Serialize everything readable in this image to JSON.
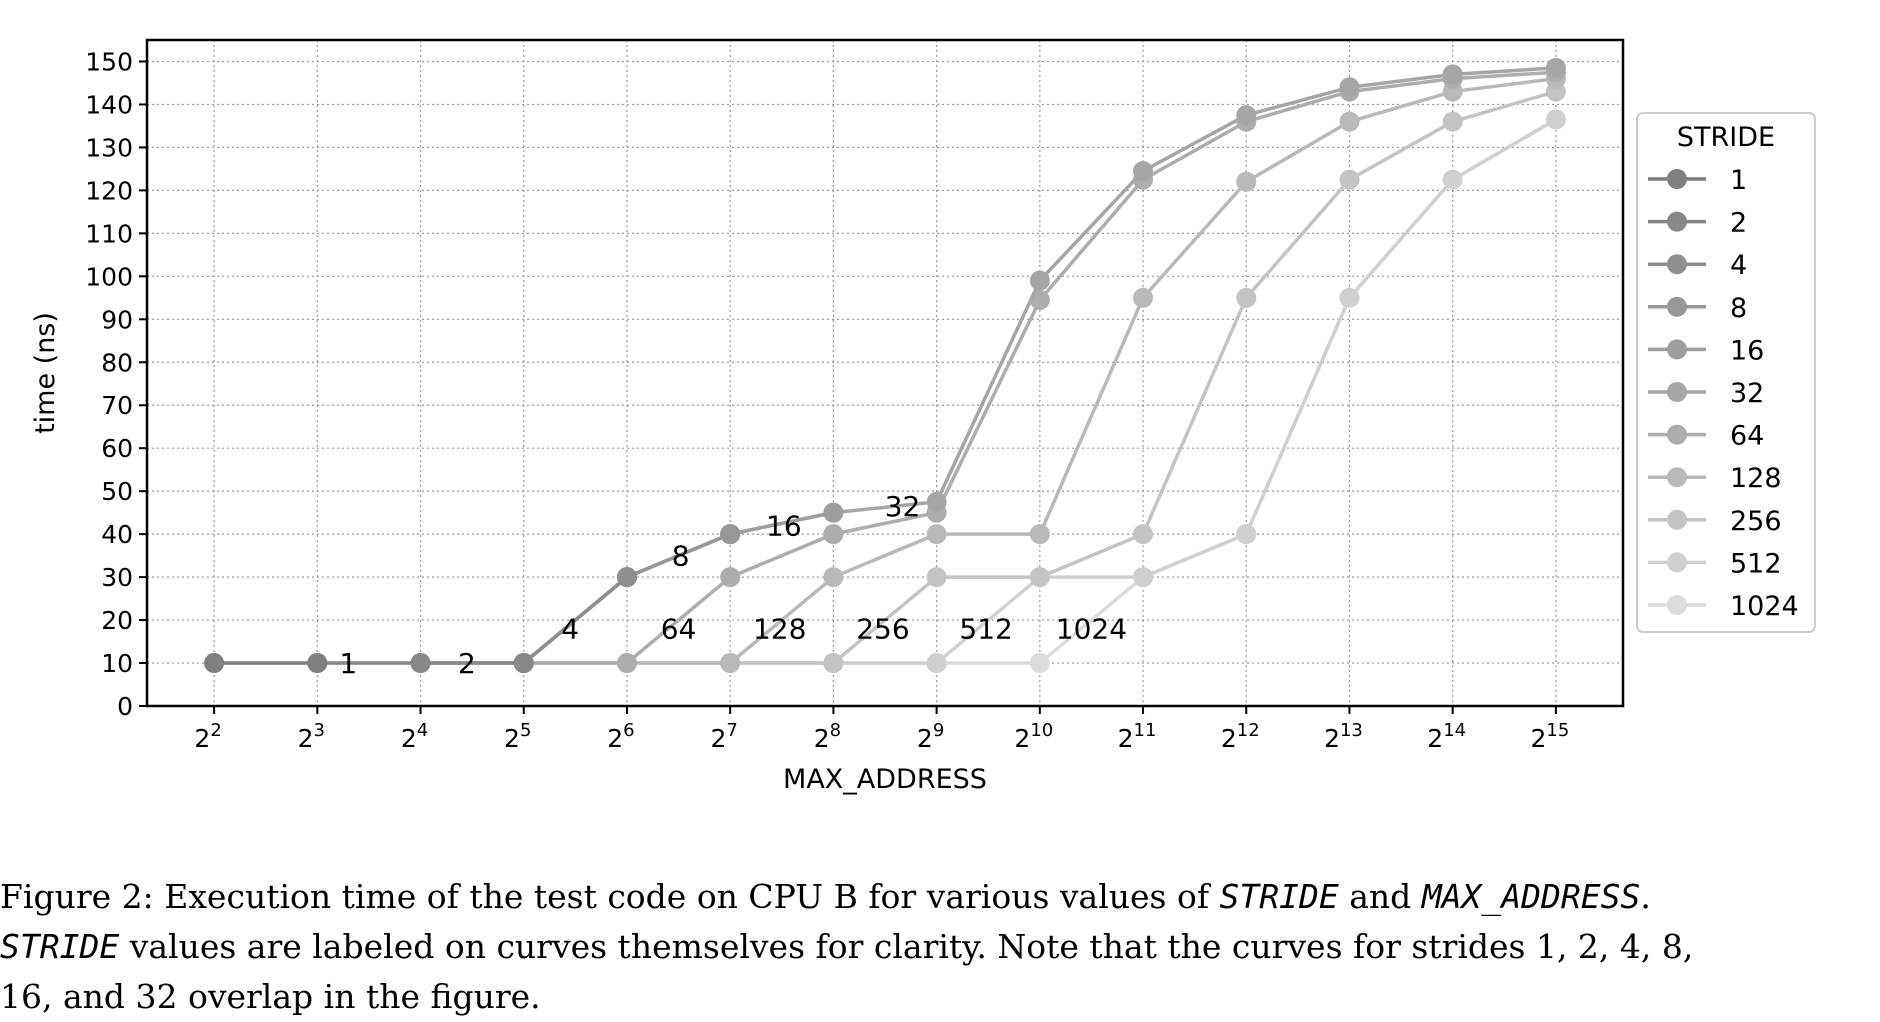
{
  "chart_data": {
    "type": "line",
    "xlabel": "MAX_ADDRESS",
    "ylabel": "time (ns)",
    "x": [
      2,
      3,
      4,
      5,
      6,
      7,
      8,
      9,
      10,
      11,
      12,
      13,
      14,
      15
    ],
    "x_tick_base": "2",
    "x_tick_exponents": [
      "2",
      "3",
      "4",
      "5",
      "6",
      "7",
      "8",
      "9",
      "10",
      "11",
      "12",
      "13",
      "14",
      "15"
    ],
    "ylim": [
      0,
      155
    ],
    "yticks": [
      0,
      10,
      20,
      30,
      40,
      50,
      60,
      70,
      80,
      90,
      100,
      110,
      120,
      130,
      140,
      150
    ],
    "grid": true,
    "legend_title": "STRIDE",
    "legend_position": "right",
    "series": [
      {
        "name": "1",
        "color": "#7f7f7f",
        "values": [
          10,
          10,
          null,
          null,
          null,
          null,
          null,
          null,
          null,
          null,
          null,
          null,
          null,
          null
        ]
      },
      {
        "name": "2",
        "color": "#888888",
        "values": [
          null,
          10,
          10,
          10,
          null,
          null,
          null,
          null,
          null,
          null,
          null,
          null,
          null,
          null
        ]
      },
      {
        "name": "4",
        "color": "#8f8f8f",
        "values": [
          null,
          null,
          10,
          10,
          30,
          null,
          null,
          null,
          null,
          null,
          null,
          null,
          null,
          null
        ]
      },
      {
        "name": "8",
        "color": "#979797",
        "values": [
          null,
          null,
          null,
          10,
          30,
          40,
          null,
          null,
          null,
          null,
          null,
          null,
          null,
          null
        ]
      },
      {
        "name": "16",
        "color": "#9e9e9e",
        "values": [
          null,
          null,
          null,
          10,
          30,
          40,
          45,
          null,
          null,
          null,
          null,
          null,
          null,
          null
        ]
      },
      {
        "name": "32",
        "color": "#a6a6a6",
        "values": [
          null,
          null,
          null,
          10,
          30,
          40,
          45,
          47.5,
          99,
          124.5,
          137.5,
          144,
          147,
          148.5
        ]
      },
      {
        "name": "64",
        "color": "#adadad",
        "values": [
          null,
          null,
          null,
          10,
          10,
          30,
          40,
          45,
          94.5,
          122.5,
          136,
          143,
          146,
          147.5
        ]
      },
      {
        "name": "128",
        "color": "#b9b9b9",
        "values": [
          null,
          null,
          null,
          null,
          10,
          10,
          30,
          40,
          40,
          95,
          122,
          136,
          143,
          146
        ]
      },
      {
        "name": "256",
        "color": "#c4c4c4",
        "values": [
          null,
          null,
          null,
          null,
          null,
          10,
          10,
          30,
          30,
          40,
          95,
          122.5,
          136,
          143
        ]
      },
      {
        "name": "512",
        "color": "#d0d0d0",
        "values": [
          null,
          null,
          null,
          null,
          null,
          null,
          10,
          10,
          30,
          30,
          40,
          95,
          122.5,
          136.5
        ]
      },
      {
        "name": "1024",
        "color": "#dcdcdc",
        "values": [
          10,
          10,
          10,
          10,
          10,
          10,
          10,
          10,
          10,
          30,
          40,
          95,
          122.5,
          136.5
        ]
      }
    ],
    "annotations": [
      {
        "text": "1",
        "x": 3.3,
        "y": 10
      },
      {
        "text": "2",
        "x": 4.45,
        "y": 10
      },
      {
        "text": "4",
        "x": 5.45,
        "y": 18
      },
      {
        "text": "8",
        "x": 6.52,
        "y": 35
      },
      {
        "text": "16",
        "x": 7.52,
        "y": 42
      },
      {
        "text": "32",
        "x": 8.67,
        "y": 46.5
      },
      {
        "text": "64",
        "x": 6.5,
        "y": 18
      },
      {
        "text": "128",
        "x": 7.48,
        "y": 18
      },
      {
        "text": "256",
        "x": 8.48,
        "y": 18
      },
      {
        "text": "512",
        "x": 9.48,
        "y": 18
      },
      {
        "text": "1024",
        "x": 10.5,
        "y": 18
      }
    ]
  },
  "caption": {
    "line1_a": "Figure 2: Execution time of the test code on CPU B for various values of ",
    "line1_b": "STRIDE",
    "line1_c": " and ",
    "line1_d": "MAX_ADDRESS",
    "line1_e": ".",
    "line2_a": "STRIDE",
    "line2_b": " values are labeled on curves themselves for clarity. Note that the curves for strides 1, 2, 4, 8,",
    "line3": "16, and 32 overlap in the figure."
  }
}
